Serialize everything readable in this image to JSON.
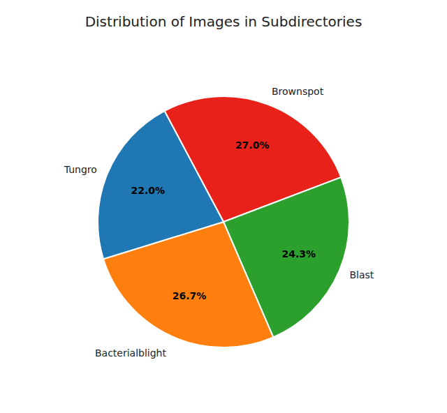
{
  "chart_data": {
    "type": "pie",
    "title": "Distribution of Images in Subdirectories",
    "categories": [
      "Brownspot",
      "Blast",
      "Bacterialblight",
      "Tungro"
    ],
    "values": [
      27.0,
      24.3,
      26.7,
      22.0
    ],
    "value_labels": [
      "27.0%",
      "24.3%",
      "26.7%",
      "22.0%"
    ],
    "colors": [
      "#e8221b",
      "#2ca02c",
      "#ff7f0e",
      "#1f77b4"
    ],
    "data_labels": true
  }
}
